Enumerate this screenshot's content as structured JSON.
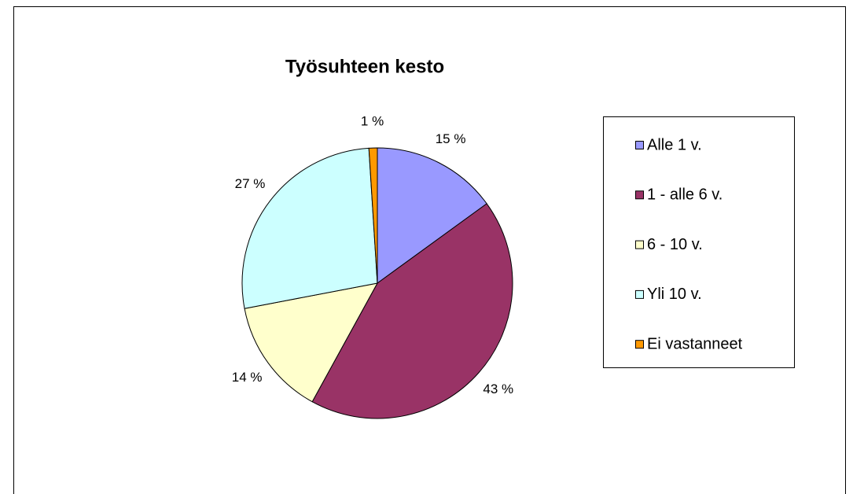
{
  "chart_data": {
    "type": "pie",
    "title": "Työsuhteen kesto",
    "categories": [
      "Alle 1 v.",
      "1 - alle 6 v.",
      "6 - 10 v.",
      "Yli 10 v.",
      "Ei vastanneet"
    ],
    "values": [
      15,
      43,
      14,
      27,
      1
    ],
    "value_labels": [
      "15 %",
      "43 %",
      "14 %",
      "27 %",
      "1 %"
    ],
    "colors": [
      "#9999ff",
      "#993366",
      "#ffffcc",
      "#ccffff",
      "#ff9900"
    ],
    "legend": "right"
  }
}
